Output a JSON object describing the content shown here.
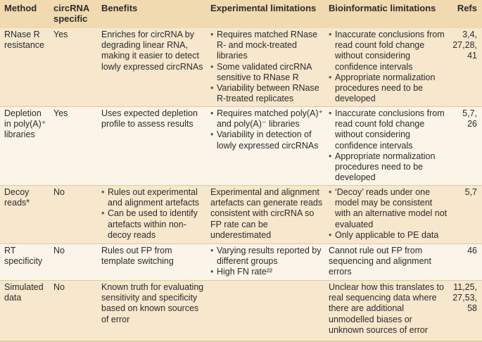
{
  "header": {
    "method": "Method",
    "circrna_specific": "circRNA specific",
    "benefits": "Benefits",
    "experimental": "Experimental limitations",
    "bioinformatic": "Bioinformatic limitations",
    "refs": "Refs"
  },
  "rows": [
    {
      "method": "RNase R resistance",
      "specific": "Yes",
      "benefits": "Enriches for circRNA by degrading linear RNA, making it easier to detect lowly expressed circRNAs",
      "experimental": [
        "Requires matched RNase R- and mock-treated libraries",
        "Some validated circRNA sensitive to RNase R",
        "Variability between RNase R-treated replicates"
      ],
      "bioinformatic": [
        "Inaccurate conclusions from read count fold change without considering confidence intervals",
        "Appropriate normalization procedures need to be developed"
      ],
      "refs": "3,4, 27,28, 41"
    },
    {
      "method": "Depletion in poly(A)⁺ libraries",
      "specific": "Yes",
      "benefits": "Uses expected depletion profile to assess results",
      "experimental": [
        "Requires matched poly(A)⁺ and poly(A)⁻ libraries",
        "Variability in detection of lowly expressed circRNAs"
      ],
      "bioinformatic": [
        "Inaccurate conclusions from read count fold change without considering confidence intervals",
        "Appropriate normalization procedures need to be developed"
      ],
      "refs": "5,7, 26"
    },
    {
      "method": "Decoy reads*",
      "specific": "No",
      "benefits_list": [
        "Rules out experimental and alignment artefacts",
        "Can be used to identify artefacts within non-decoy reads"
      ],
      "experimental_text": "Experimental and alignment artefacts can generate reads consistent with circRNA so FP rate can be underestimated",
      "bioinformatic": [
        "‘Decoy’ reads under one model may be consistent with an alternative model not evaluated",
        "Only applicable to PE data"
      ],
      "refs": "5,7"
    },
    {
      "method": "RT specificity",
      "specific": "No",
      "benefits": "Rules out FP from template switching",
      "experimental": [
        "Varying results reported by different groups",
        "High FN rate²²"
      ],
      "bioinformatic_text": "Cannot rule out FP from sequencing and alignment errors",
      "refs": "46"
    },
    {
      "method": "Simulated data",
      "specific": "No",
      "benefits": "Known truth for evaluating sensitivity and specificity based on known sources of error",
      "experimental_text": "",
      "bioinformatic_text": "Unclear how this translates to real sequencing data where there are additional unmodelled biases or unknown sources of error",
      "refs": "11,25, 27,53, 58"
    }
  ],
  "colors": {
    "header_bg": "#f1d9b0",
    "alt_row_bg": "#f6e7cd",
    "page_bg": "#fbf4e8",
    "rule": "#e1c9a0"
  }
}
